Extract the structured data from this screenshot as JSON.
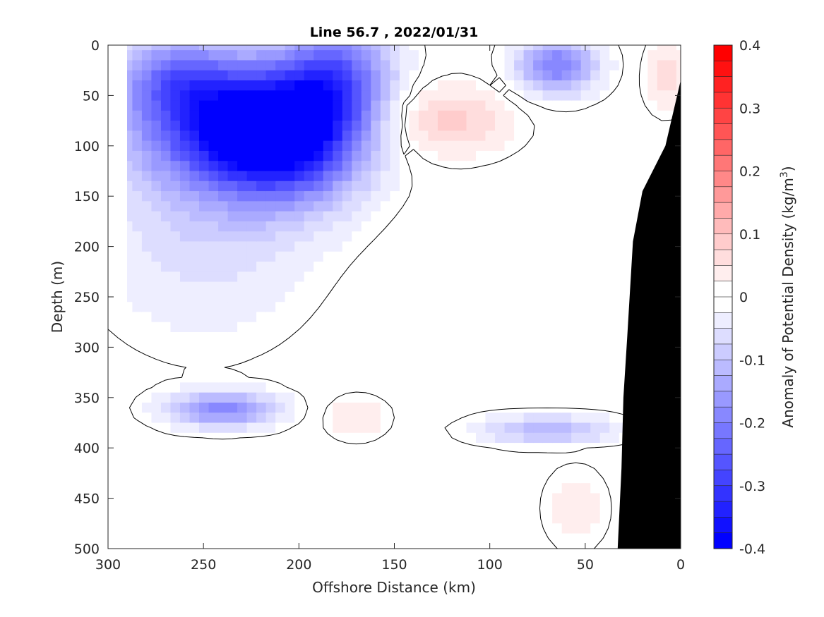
{
  "chart_data": {
    "type": "heatmap",
    "title": "Line 56.7 , 2022/01/31",
    "xlabel": "Offshore Distance (km)",
    "ylabel": "Depth (m)",
    "colorbar_label_prefix": "Anomaly of Potential Density (kg/m",
    "colorbar_label_sup": "3",
    "colorbar_label_suffix": ")",
    "xlim": [
      300,
      0
    ],
    "ylim": [
      500,
      0
    ],
    "x_ticks": [
      300,
      250,
      200,
      150,
      100,
      50,
      0
    ],
    "y_ticks": [
      0,
      50,
      100,
      150,
      200,
      250,
      300,
      350,
      400,
      450,
      500
    ],
    "colorbar": {
      "range": [
        -0.4,
        0.4
      ],
      "step": 0.025,
      "ticks": [
        "-0.4",
        "-0.3",
        "-0.2",
        "-0.1",
        "0",
        "0.1",
        "0.2",
        "0.3",
        "0.4"
      ],
      "tick_values": [
        -0.4,
        -0.3,
        -0.2,
        -0.1,
        0,
        0.1,
        0.2,
        0.3,
        0.4
      ],
      "min_color": "#0000ff",
      "zero_color": "#ffffff",
      "max_color": "#ff0000"
    },
    "anomaly_features": [
      {
        "distance_km": 207,
        "depth_m": 90,
        "value": -0.33,
        "sd_km": 28,
        "sd_m": 45
      },
      {
        "distance_km": 240,
        "depth_m": 80,
        "value": -0.24,
        "sd_km": 35,
        "sd_m": 40
      },
      {
        "distance_km": 180,
        "depth_m": 30,
        "value": -0.2,
        "sd_km": 20,
        "sd_m": 40
      },
      {
        "distance_km": 265,
        "depth_m": 30,
        "value": -0.16,
        "sd_km": 22,
        "sd_m": 28
      },
      {
        "distance_km": 65,
        "depth_m": 20,
        "value": -0.2,
        "sd_km": 15,
        "sd_m": 20
      },
      {
        "distance_km": 250,
        "depth_m": 170,
        "value": -0.07,
        "sd_km": 40,
        "sd_m": 80
      },
      {
        "distance_km": 240,
        "depth_m": 362,
        "value": -0.18,
        "sd_km": 20,
        "sd_m": 12
      },
      {
        "distance_km": 70,
        "depth_m": 382,
        "value": -0.12,
        "sd_km": 25,
        "sd_m": 10
      },
      {
        "distance_km": 125,
        "depth_m": 75,
        "value": 0.09,
        "sd_km": 25,
        "sd_m": 25
      },
      {
        "distance_km": 8,
        "depth_m": 30,
        "value": 0.06,
        "sd_km": 8,
        "sd_m": 25
      },
      {
        "distance_km": 170,
        "depth_m": 370,
        "value": 0.05,
        "sd_km": 12,
        "sd_m": 15
      },
      {
        "distance_km": 55,
        "depth_m": 460,
        "value": 0.04,
        "sd_km": 12,
        "sd_m": 30
      }
    ],
    "bathymetry_profile": [
      {
        "distance_km": 0,
        "depth_m": 35
      },
      {
        "distance_km": 8,
        "depth_m": 100
      },
      {
        "distance_km": 20,
        "depth_m": 145
      },
      {
        "distance_km": 25,
        "depth_m": 195
      },
      {
        "distance_km": 28,
        "depth_m": 290
      },
      {
        "distance_km": 30,
        "depth_m": 350
      },
      {
        "distance_km": 31,
        "depth_m": 420
      },
      {
        "distance_km": 33,
        "depth_m": 500
      }
    ],
    "bathymetry_color": "#000000"
  }
}
